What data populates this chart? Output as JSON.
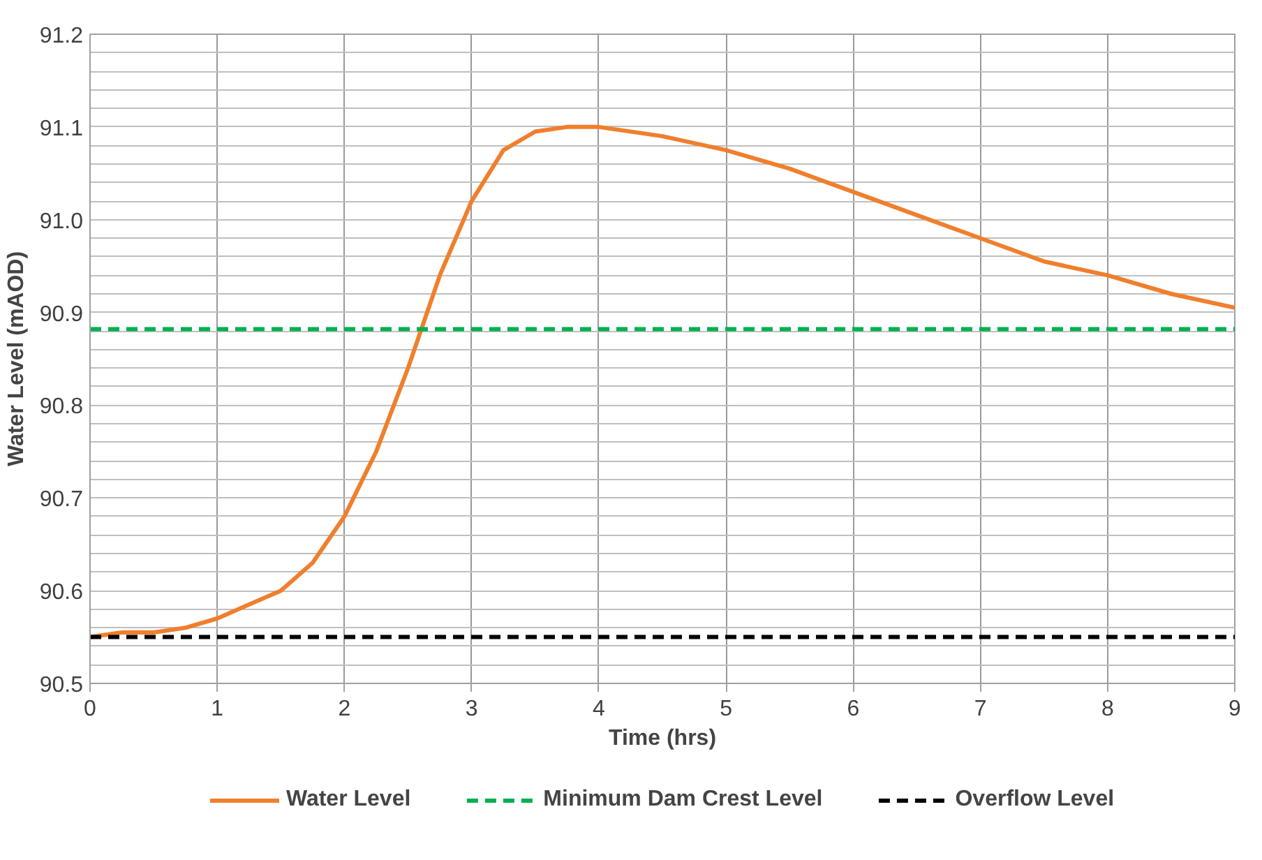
{
  "chart_data": {
    "type": "line",
    "xlabel": "Time (hrs)",
    "ylabel": "Water Level (mAOD)",
    "x": [
      0,
      0.25,
      0.5,
      0.75,
      1,
      1.25,
      1.5,
      1.75,
      2,
      2.25,
      2.5,
      2.75,
      3,
      3.25,
      3.5,
      3.75,
      4,
      4.5,
      5,
      5.5,
      6,
      6.5,
      7,
      7.5,
      8,
      8.5,
      9
    ],
    "series": [
      {
        "name": "Water Level",
        "color": "#f07f2d",
        "values": [
          90.55,
          90.555,
          90.555,
          90.56,
          90.57,
          90.585,
          90.6,
          90.63,
          90.68,
          90.75,
          90.84,
          90.94,
          91.02,
          91.075,
          91.095,
          91.1,
          91.1,
          91.09,
          91.075,
          91.055,
          91.03,
          91.005,
          90.98,
          90.955,
          90.94,
          90.92,
          90.905
        ]
      }
    ],
    "ref_lines": [
      {
        "axis": "y",
        "value": 90.882,
        "label": "Minimum Dam Crest Level",
        "color": "#00b050",
        "line_style": "dashed"
      },
      {
        "axis": "y",
        "value": 90.55,
        "label": "Overflow Level",
        "color": "#000000",
        "line_style": "dashed"
      }
    ],
    "xlim": [
      0,
      9
    ],
    "xticks": [
      0,
      1,
      2,
      3,
      4,
      5,
      6,
      7,
      8,
      9
    ],
    "ylim": [
      90.5,
      91.2
    ],
    "yticks": [
      {
        "value": 90.5,
        "label": "90.5"
      },
      {
        "value": 90.52,
        "label": null
      },
      {
        "value": 90.54,
        "label": null
      },
      {
        "value": 90.56,
        "label": null
      },
      {
        "value": 90.58,
        "label": null
      },
      {
        "value": 90.6,
        "label": "90.6"
      },
      {
        "value": 90.62,
        "label": null
      },
      {
        "value": 90.64,
        "label": null
      },
      {
        "value": 90.66,
        "label": null
      },
      {
        "value": 90.68,
        "label": null
      },
      {
        "value": 90.7,
        "label": "90.7"
      },
      {
        "value": 90.72,
        "label": null
      },
      {
        "value": 90.74,
        "label": null
      },
      {
        "value": 90.76,
        "label": null
      },
      {
        "value": 90.78,
        "label": null
      },
      {
        "value": 90.8,
        "label": "90.8"
      },
      {
        "value": 90.82,
        "label": null
      },
      {
        "value": 90.84,
        "label": null
      },
      {
        "value": 90.86,
        "label": null
      },
      {
        "value": 90.88,
        "label": null
      },
      {
        "value": 90.9,
        "label": "90.9"
      },
      {
        "value": 90.92,
        "label": null
      },
      {
        "value": 90.94,
        "label": null
      },
      {
        "value": 90.96,
        "label": null
      },
      {
        "value": 90.98,
        "label": null
      },
      {
        "value": 91.0,
        "label": "91.0"
      },
      {
        "value": 91.02,
        "label": null
      },
      {
        "value": 91.04,
        "label": null
      },
      {
        "value": 91.06,
        "label": null
      },
      {
        "value": 91.08,
        "label": null
      },
      {
        "value": 91.1,
        "label": "91.1"
      },
      {
        "value": 91.12,
        "label": null
      },
      {
        "value": 91.14,
        "label": null
      },
      {
        "value": 91.16,
        "label": null
      },
      {
        "value": 91.18,
        "label": null
      },
      {
        "value": 91.2,
        "label": "91.2"
      }
    ],
    "grid": true,
    "legend": "bottom",
    "line_style": "solid",
    "marker": "none"
  }
}
